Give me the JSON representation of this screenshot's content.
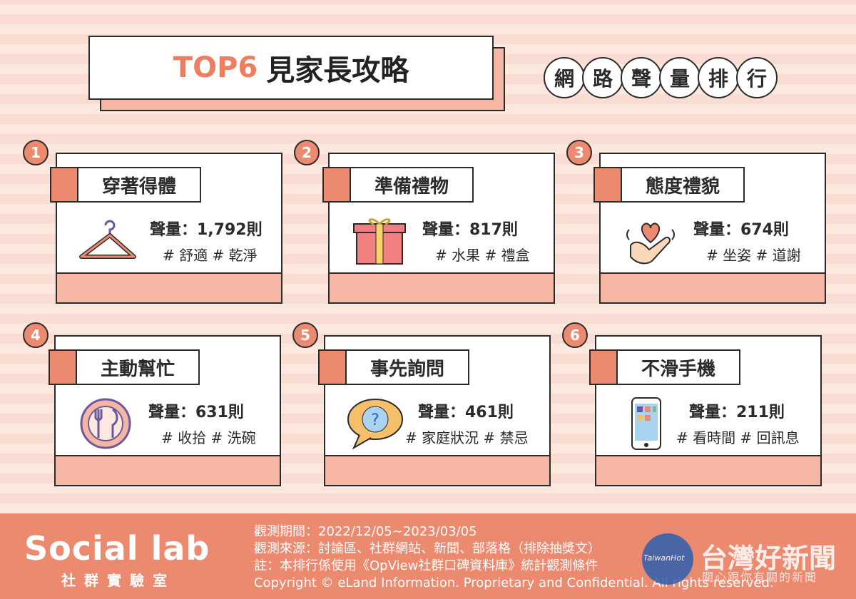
{
  "title": {
    "accent": "TOP6",
    "main": "見家長攻略"
  },
  "subtitle_chars": [
    "網",
    "路",
    "聲",
    "量",
    "排",
    "行"
  ],
  "colors": {
    "accent": "#ec8a70",
    "light": "#f5b7a3",
    "outline": "#2b2b2b"
  },
  "chart_data": {
    "type": "table",
    "items": [
      {
        "rank": "1",
        "name": "穿著得體",
        "volume": "聲量：1,792則",
        "value": 1792,
        "tags": "# 舒適 # 乾淨",
        "icon": "hanger-icon"
      },
      {
        "rank": "2",
        "name": "準備禮物",
        "volume": "聲量：817則",
        "value": 817,
        "tags": "# 水果 # 禮盒",
        "icon": "gift-icon"
      },
      {
        "rank": "3",
        "name": "態度禮貌",
        "volume": "聲量：674則",
        "value": 674,
        "tags": "# 坐姿 # 道謝",
        "icon": "heart-hand-icon"
      },
      {
        "rank": "4",
        "name": "主動幫忙",
        "volume": "聲量：631則",
        "value": 631,
        "tags": "# 收拾 # 洗碗",
        "icon": "plate-utensils-icon"
      },
      {
        "rank": "5",
        "name": "事先詢問",
        "volume": "聲量：461則",
        "value": 461,
        "tags": "# 家庭狀況 # 禁忌",
        "icon": "question-bubble-icon"
      },
      {
        "rank": "6",
        "name": "不滑手機",
        "volume": "聲量：211則",
        "value": 211,
        "tags": "# 看時間 # 回訊息",
        "icon": "smartphone-icon"
      }
    ]
  },
  "footer": {
    "logo": "Social lab",
    "logo_sub": "社群實驗室",
    "period": "觀測期間：2022/12/05~2023/03/05",
    "sources": "觀測來源：討論區、社群網站、新聞、部落格（排除抽獎文）",
    "note": "註：本排行係使用《OpView社群口碑資料庫》統計觀測條件",
    "copyright": "Copyright © eLand Information. Proprietary and Confidential. All rights reserved."
  },
  "watermark": {
    "badge": "TaiwanHot",
    "title": "台灣好新聞",
    "sub": "關心跟你有關的新聞"
  }
}
